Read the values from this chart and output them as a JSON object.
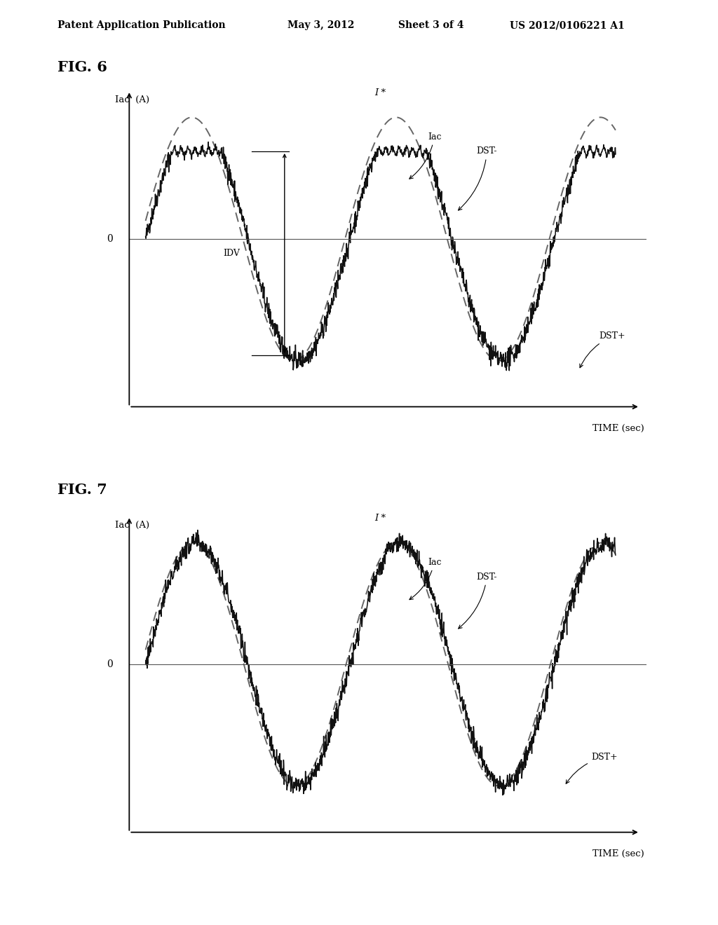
{
  "title_header": "Patent Application Publication",
  "date_header": "May 3, 2012",
  "sheet_header": "Sheet 3 of 4",
  "patent_header": "US 2012/0106221 A1",
  "fig6_title": "FIG. 6",
  "fig7_title": "FIG. 7",
  "ylabel": "Iac  (A)",
  "xlabel": "TIME (sec)",
  "zero_label": "0",
  "background_color": "#ffffff",
  "solid_color": "#000000",
  "dashed_color": "#555555"
}
